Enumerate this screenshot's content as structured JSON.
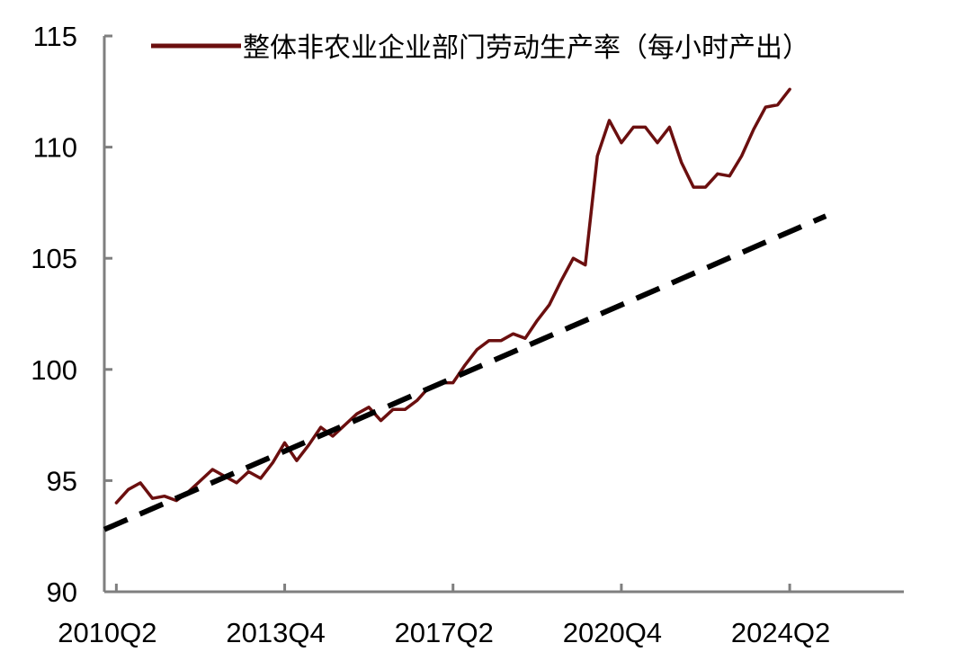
{
  "chart_data": {
    "type": "line",
    "title": "",
    "xlabel": "",
    "ylabel": "",
    "ylim": [
      90,
      115
    ],
    "y_ticks": [
      90,
      95,
      100,
      105,
      110,
      115
    ],
    "x_tick_labels": [
      "2010Q2",
      "2013Q4",
      "2017Q2",
      "2020Q4",
      "2024Q2"
    ],
    "grid": false,
    "legend_position": "top",
    "series": [
      {
        "name": "整体非农业企业部门劳动生产率（每小时产出）",
        "color": "#6b0f0f",
        "style": "solid",
        "x": [
          "2010Q2",
          "2010Q3",
          "2010Q4",
          "2011Q1",
          "2011Q2",
          "2011Q3",
          "2011Q4",
          "2012Q1",
          "2012Q2",
          "2012Q3",
          "2012Q4",
          "2013Q1",
          "2013Q2",
          "2013Q3",
          "2013Q4",
          "2014Q1",
          "2014Q2",
          "2014Q3",
          "2014Q4",
          "2015Q1",
          "2015Q2",
          "2015Q3",
          "2015Q4",
          "2016Q1",
          "2016Q2",
          "2016Q3",
          "2016Q4",
          "2017Q1",
          "2017Q2",
          "2017Q3",
          "2017Q4",
          "2018Q1",
          "2018Q2",
          "2018Q3",
          "2018Q4",
          "2019Q1",
          "2019Q2",
          "2019Q3",
          "2019Q4",
          "2020Q1",
          "2020Q2",
          "2020Q3",
          "2020Q4",
          "2021Q1",
          "2021Q2",
          "2021Q3",
          "2021Q4",
          "2022Q1",
          "2022Q2",
          "2022Q3",
          "2022Q4",
          "2023Q1",
          "2023Q2",
          "2023Q3",
          "2023Q4",
          "2024Q1",
          "2024Q2"
        ],
        "values": [
          94.0,
          94.6,
          94.9,
          94.2,
          94.3,
          94.1,
          94.5,
          95.0,
          95.5,
          95.2,
          94.9,
          95.4,
          95.1,
          95.8,
          96.7,
          95.9,
          96.6,
          97.4,
          97.0,
          97.5,
          98.0,
          98.3,
          97.7,
          98.2,
          98.2,
          98.6,
          99.2,
          99.4,
          99.4,
          100.2,
          100.9,
          101.3,
          101.3,
          101.6,
          101.4,
          102.2,
          102.9,
          104.0,
          105.0,
          104.7,
          109.6,
          111.2,
          110.2,
          110.9,
          110.9,
          110.2,
          110.9,
          109.3,
          108.2,
          108.2,
          108.8,
          108.7,
          109.6,
          110.8,
          111.8,
          111.9,
          112.6
        ]
      },
      {
        "name": "",
        "color": "#000000",
        "style": "dashed",
        "x": [
          "2010Q1",
          "2025Q1"
        ],
        "values": [
          92.8,
          106.9
        ]
      }
    ]
  }
}
